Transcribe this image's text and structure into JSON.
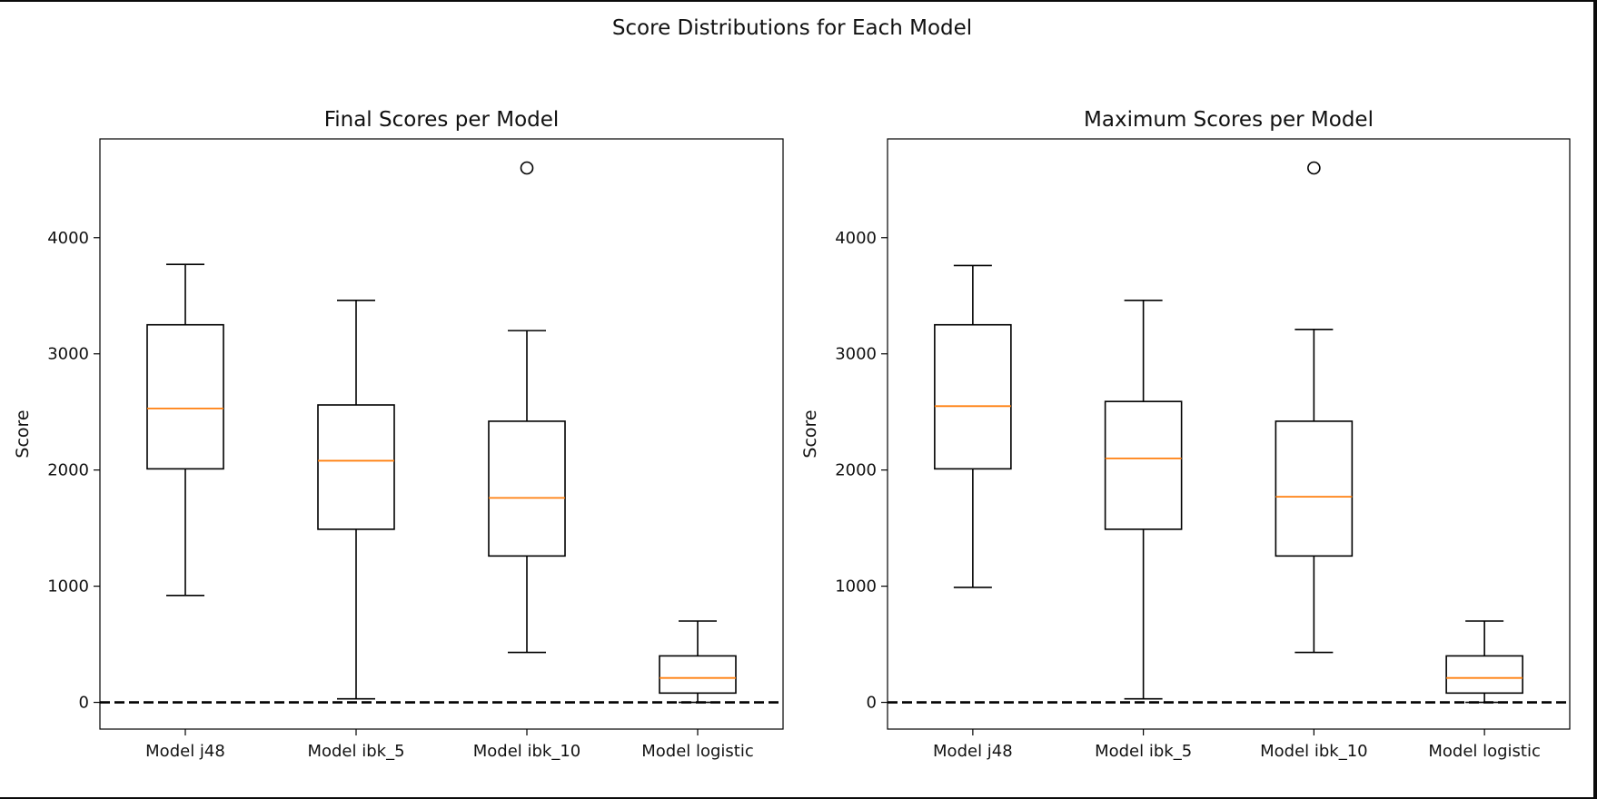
{
  "figure": {
    "suptitle": "Score Distributions for Each Model"
  },
  "chart_data": [
    {
      "type": "box",
      "title": "Final Scores per Model",
      "xlabel": "",
      "ylabel": "Score",
      "ylim": [
        -230,
        4850
      ],
      "yticks": [
        0,
        1000,
        2000,
        3000,
        4000
      ],
      "grid": false,
      "reference_line": {
        "y": 0,
        "style": "dashed",
        "color": "#000000"
      },
      "categories": [
        "Model j48",
        "Model ibk_5",
        "Model ibk_10",
        "Model logistic"
      ],
      "boxes": [
        {
          "whisker_low": 920,
          "q1": 2010,
          "median": 2530,
          "q3": 3250,
          "whisker_high": 3770,
          "outliers": []
        },
        {
          "whisker_low": 30,
          "q1": 1490,
          "median": 2080,
          "q3": 2560,
          "whisker_high": 3460,
          "outliers": []
        },
        {
          "whisker_low": 430,
          "q1": 1260,
          "median": 1760,
          "q3": 2420,
          "whisker_high": 3200,
          "outliers": [
            4600
          ]
        },
        {
          "whisker_low": 0,
          "q1": 80,
          "median": 210,
          "q3": 400,
          "whisker_high": 700,
          "outliers": []
        }
      ],
      "colors": {
        "box": "#000000",
        "median": "#ff7f0e"
      }
    },
    {
      "type": "box",
      "title": "Maximum Scores per Model",
      "xlabel": "",
      "ylabel": "Score",
      "ylim": [
        -230,
        4850
      ],
      "yticks": [
        0,
        1000,
        2000,
        3000,
        4000
      ],
      "grid": false,
      "reference_line": {
        "y": 0,
        "style": "dashed",
        "color": "#000000"
      },
      "categories": [
        "Model j48",
        "Model ibk_5",
        "Model ibk_10",
        "Model logistic"
      ],
      "boxes": [
        {
          "whisker_low": 990,
          "q1": 2010,
          "median": 2550,
          "q3": 3250,
          "whisker_high": 3760,
          "outliers": []
        },
        {
          "whisker_low": 30,
          "q1": 1490,
          "median": 2100,
          "q3": 2590,
          "whisker_high": 3460,
          "outliers": []
        },
        {
          "whisker_low": 430,
          "q1": 1260,
          "median": 1770,
          "q3": 2420,
          "whisker_high": 3210,
          "outliers": [
            4600
          ]
        },
        {
          "whisker_low": 0,
          "q1": 80,
          "median": 210,
          "q3": 400,
          "whisker_high": 700,
          "outliers": []
        }
      ],
      "colors": {
        "box": "#000000",
        "median": "#ff7f0e"
      }
    }
  ]
}
